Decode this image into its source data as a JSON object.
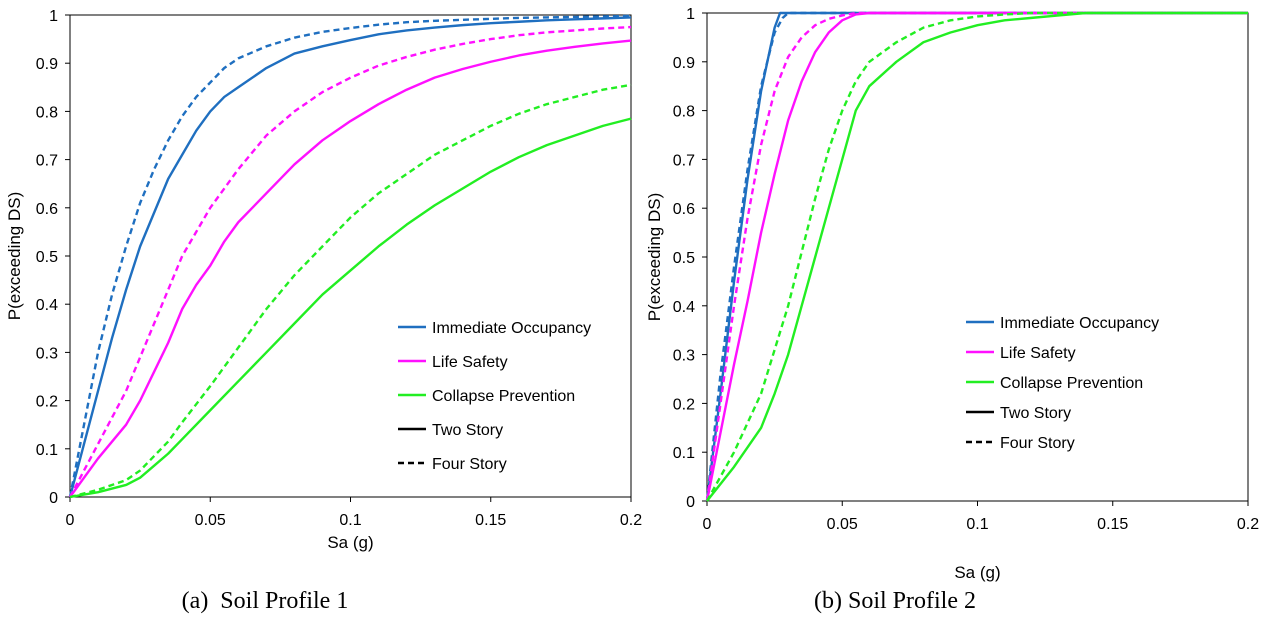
{
  "chart_data": [
    {
      "type": "line",
      "caption": "(a)  Soil Profile 1",
      "xlabel": "Sa (g)",
      "ylabel": "P(exceeding DS)",
      "xlim": [
        0,
        0.2
      ],
      "ylim": [
        0,
        1
      ],
      "x_ticks": [
        0,
        0.05,
        0.1,
        0.15,
        0.2
      ],
      "x_tick_labels": [
        "0",
        "0.05",
        "0.1",
        "0.15",
        "0.2"
      ],
      "y_ticks": [
        0,
        0.1,
        0.2,
        0.3,
        0.4,
        0.5,
        0.6,
        0.7,
        0.8,
        0.9,
        1
      ],
      "y_tick_labels": [
        "0",
        "0.1",
        "0.2",
        "0.3",
        "0.4",
        "0.5",
        "0.6",
        "0.7",
        "0.8",
        "0.9",
        "1"
      ],
      "grid": false,
      "legend_placement": "bottom-right",
      "legend": [
        {
          "label": "Immediate Occupancy",
          "color": "#1f6fc0",
          "dash": "solid"
        },
        {
          "label": "Life Safety",
          "color": "#ff10ff",
          "dash": "solid"
        },
        {
          "label": "Collapse Prevention",
          "color": "#22ee22",
          "dash": "solid"
        },
        {
          "label": "Two Story",
          "color": "#000000",
          "dash": "solid"
        },
        {
          "label": "Four Story",
          "color": "#000000",
          "dash": "dashed"
        }
      ],
      "series": [
        {
          "state": "Immediate Occupancy",
          "story": "Two Story",
          "color": "#1f6fc0",
          "dash": "solid",
          "x": [
            0,
            0.005,
            0.01,
            0.015,
            0.02,
            0.025,
            0.03,
            0.035,
            0.04,
            0.045,
            0.05,
            0.055,
            0.06,
            0.07,
            0.08,
            0.09,
            0.1,
            0.11,
            0.12,
            0.13,
            0.14,
            0.15,
            0.16,
            0.17,
            0.18,
            0.19,
            0.2
          ],
          "y": [
            0,
            0.11,
            0.22,
            0.33,
            0.43,
            0.52,
            0.59,
            0.66,
            0.71,
            0.76,
            0.8,
            0.83,
            0.85,
            0.89,
            0.92,
            0.935,
            0.948,
            0.96,
            0.968,
            0.974,
            0.979,
            0.983,
            0.986,
            0.989,
            0.991,
            0.993,
            0.995
          ]
        },
        {
          "state": "Immediate Occupancy",
          "story": "Four Story",
          "color": "#1f6fc0",
          "dash": "dashed",
          "x": [
            0,
            0.005,
            0.01,
            0.015,
            0.02,
            0.025,
            0.03,
            0.035,
            0.04,
            0.045,
            0.05,
            0.055,
            0.06,
            0.07,
            0.08,
            0.09,
            0.1,
            0.11,
            0.12,
            0.13,
            0.14,
            0.15,
            0.16,
            0.17,
            0.18,
            0.19,
            0.2
          ],
          "y": [
            0,
            0.15,
            0.3,
            0.42,
            0.52,
            0.61,
            0.68,
            0.74,
            0.79,
            0.83,
            0.86,
            0.89,
            0.91,
            0.935,
            0.953,
            0.965,
            0.973,
            0.98,
            0.985,
            0.988,
            0.99,
            0.992,
            0.994,
            0.995,
            0.996,
            0.997,
            0.998
          ]
        },
        {
          "state": "Life Safety",
          "story": "Two Story",
          "color": "#ff10ff",
          "dash": "solid",
          "x": [
            0,
            0.01,
            0.02,
            0.025,
            0.03,
            0.035,
            0.04,
            0.045,
            0.05,
            0.055,
            0.06,
            0.07,
            0.08,
            0.09,
            0.1,
            0.11,
            0.12,
            0.13,
            0.14,
            0.15,
            0.16,
            0.17,
            0.18,
            0.19,
            0.2
          ],
          "y": [
            0,
            0.08,
            0.15,
            0.2,
            0.26,
            0.32,
            0.39,
            0.44,
            0.48,
            0.53,
            0.57,
            0.63,
            0.69,
            0.74,
            0.78,
            0.815,
            0.845,
            0.87,
            0.888,
            0.903,
            0.916,
            0.926,
            0.934,
            0.941,
            0.947
          ]
        },
        {
          "state": "Life Safety",
          "story": "Four Story",
          "color": "#ff10ff",
          "dash": "dashed",
          "x": [
            0,
            0.01,
            0.02,
            0.025,
            0.03,
            0.035,
            0.04,
            0.045,
            0.05,
            0.055,
            0.06,
            0.07,
            0.08,
            0.09,
            0.1,
            0.11,
            0.12,
            0.13,
            0.14,
            0.15,
            0.16,
            0.17,
            0.18,
            0.19,
            0.2
          ],
          "y": [
            0,
            0.11,
            0.22,
            0.29,
            0.36,
            0.43,
            0.5,
            0.55,
            0.6,
            0.64,
            0.68,
            0.75,
            0.8,
            0.84,
            0.87,
            0.895,
            0.913,
            0.928,
            0.94,
            0.95,
            0.958,
            0.964,
            0.968,
            0.972,
            0.975
          ]
        },
        {
          "state": "Collapse Prevention",
          "story": "Two Story",
          "color": "#22ee22",
          "dash": "solid",
          "x": [
            0,
            0.01,
            0.02,
            0.025,
            0.03,
            0.035,
            0.04,
            0.05,
            0.06,
            0.07,
            0.08,
            0.09,
            0.1,
            0.11,
            0.12,
            0.13,
            0.14,
            0.15,
            0.16,
            0.17,
            0.18,
            0.19,
            0.2
          ],
          "y": [
            0,
            0.01,
            0.025,
            0.04,
            0.065,
            0.09,
            0.12,
            0.18,
            0.24,
            0.3,
            0.36,
            0.42,
            0.47,
            0.52,
            0.565,
            0.605,
            0.64,
            0.675,
            0.705,
            0.73,
            0.75,
            0.77,
            0.785
          ]
        },
        {
          "state": "Collapse Prevention",
          "story": "Four Story",
          "color": "#22ee22",
          "dash": "dashed",
          "x": [
            0,
            0.01,
            0.02,
            0.025,
            0.03,
            0.035,
            0.04,
            0.05,
            0.06,
            0.07,
            0.08,
            0.09,
            0.1,
            0.11,
            0.12,
            0.13,
            0.14,
            0.15,
            0.16,
            0.17,
            0.18,
            0.19,
            0.2
          ],
          "y": [
            0,
            0.015,
            0.035,
            0.055,
            0.085,
            0.115,
            0.155,
            0.23,
            0.31,
            0.39,
            0.46,
            0.52,
            0.58,
            0.63,
            0.67,
            0.71,
            0.74,
            0.77,
            0.795,
            0.815,
            0.83,
            0.845,
            0.855
          ]
        }
      ]
    },
    {
      "type": "line",
      "caption": "(b) Soil Profile 2",
      "xlabel": "Sa (g)",
      "ylabel": "P(exceeding DS)",
      "xlim": [
        0,
        0.2
      ],
      "ylim": [
        0,
        1
      ],
      "x_ticks": [
        0,
        0.05,
        0.1,
        0.15,
        0.2
      ],
      "x_tick_labels": [
        "0",
        "0.05",
        "0.1",
        "0.15",
        "0.2"
      ],
      "y_ticks": [
        0,
        0.1,
        0.2,
        0.3,
        0.4,
        0.5,
        0.6,
        0.7,
        0.8,
        0.9,
        1
      ],
      "y_tick_labels": [
        "0",
        "0.1",
        "0.2",
        "0.3",
        "0.4",
        "0.5",
        "0.6",
        "0.7",
        "0.8",
        "0.9",
        "1"
      ],
      "grid": false,
      "legend_placement": "center-right",
      "legend": [
        {
          "label": "Immediate Occupancy",
          "color": "#1f6fc0",
          "dash": "solid"
        },
        {
          "label": "Life Safety",
          "color": "#ff10ff",
          "dash": "solid"
        },
        {
          "label": "Collapse Prevention",
          "color": "#22ee22",
          "dash": "solid"
        },
        {
          "label": "Two Story",
          "color": "#000000",
          "dash": "solid"
        },
        {
          "label": "Four Story",
          "color": "#000000",
          "dash": "dashed"
        }
      ],
      "series": [
        {
          "state": "Immediate Occupancy",
          "story": "Two Story",
          "color": "#1f6fc0",
          "dash": "solid",
          "x": [
            0,
            0.005,
            0.01,
            0.015,
            0.02,
            0.025,
            0.027,
            0.03,
            0.2
          ],
          "y": [
            0,
            0.22,
            0.45,
            0.66,
            0.84,
            0.97,
            1.0,
            1.0,
            1.0
          ]
        },
        {
          "state": "Immediate Occupancy",
          "story": "Four Story",
          "color": "#1f6fc0",
          "dash": "dashed",
          "x": [
            0,
            0.005,
            0.01,
            0.015,
            0.02,
            0.025,
            0.028,
            0.03,
            0.2
          ],
          "y": [
            0,
            0.26,
            0.48,
            0.68,
            0.85,
            0.96,
            0.99,
            1.0,
            1.0
          ]
        },
        {
          "state": "Life Safety",
          "story": "Two Story",
          "color": "#ff10ff",
          "dash": "solid",
          "x": [
            0,
            0.005,
            0.01,
            0.015,
            0.02,
            0.025,
            0.03,
            0.035,
            0.04,
            0.045,
            0.05,
            0.055,
            0.06,
            0.2
          ],
          "y": [
            0,
            0.14,
            0.28,
            0.41,
            0.55,
            0.67,
            0.78,
            0.86,
            0.92,
            0.96,
            0.985,
            0.997,
            1.0,
            1.0
          ]
        },
        {
          "state": "Life Safety",
          "story": "Four Story",
          "color": "#ff10ff",
          "dash": "dashed",
          "x": [
            0,
            0.005,
            0.01,
            0.015,
            0.02,
            0.025,
            0.03,
            0.035,
            0.04,
            0.045,
            0.05,
            0.055,
            0.2
          ],
          "y": [
            0,
            0.2,
            0.4,
            0.58,
            0.73,
            0.84,
            0.91,
            0.95,
            0.975,
            0.988,
            0.995,
            1.0,
            1.0
          ]
        },
        {
          "state": "Collapse Prevention",
          "story": "Two Story",
          "color": "#22ee22",
          "dash": "solid",
          "x": [
            0,
            0.01,
            0.02,
            0.025,
            0.03,
            0.035,
            0.04,
            0.045,
            0.05,
            0.055,
            0.06,
            0.07,
            0.08,
            0.09,
            0.1,
            0.11,
            0.12,
            0.13,
            0.14,
            0.16,
            0.2
          ],
          "y": [
            0,
            0.07,
            0.15,
            0.22,
            0.3,
            0.4,
            0.5,
            0.6,
            0.7,
            0.8,
            0.85,
            0.9,
            0.94,
            0.96,
            0.975,
            0.985,
            0.99,
            0.995,
            1.0,
            1.0,
            1.0
          ]
        },
        {
          "state": "Collapse Prevention",
          "story": "Four Story",
          "color": "#22ee22",
          "dash": "dashed",
          "x": [
            0,
            0.01,
            0.02,
            0.025,
            0.03,
            0.035,
            0.04,
            0.045,
            0.05,
            0.055,
            0.06,
            0.07,
            0.08,
            0.09,
            0.1,
            0.11,
            0.12,
            0.13,
            0.14,
            0.2
          ],
          "y": [
            0,
            0.1,
            0.22,
            0.31,
            0.4,
            0.51,
            0.62,
            0.72,
            0.8,
            0.86,
            0.9,
            0.94,
            0.97,
            0.985,
            0.993,
            0.997,
            1.0,
            1.0,
            1.0,
            1.0
          ]
        }
      ]
    }
  ]
}
